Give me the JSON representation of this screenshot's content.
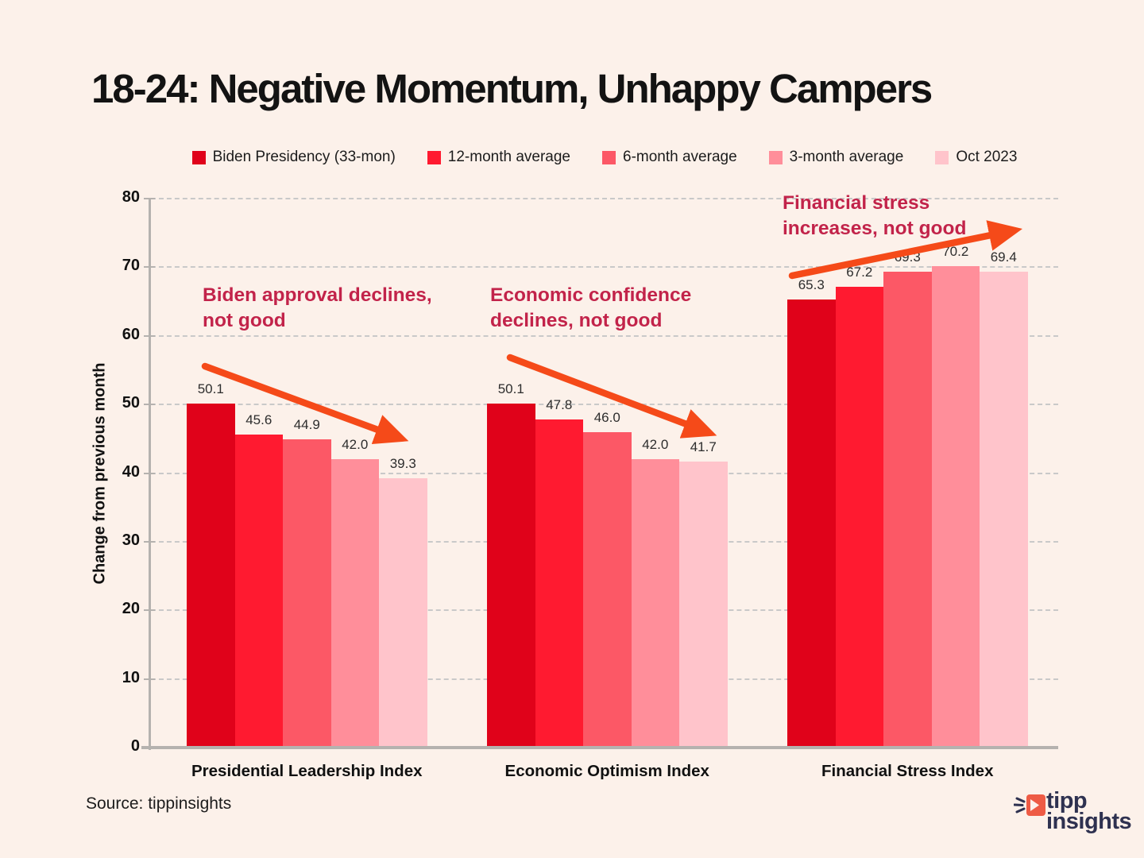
{
  "title": "18-24: Negative Momentum, Unhappy Campers",
  "chart_data": {
    "type": "bar",
    "categories": [
      "Presidential Leadership Index",
      "Economic Optimism Index",
      "Financial Stress Index"
    ],
    "series": [
      {
        "name": "Biden Presidency (33-mon)",
        "color": "#e0021a",
        "values": [
          50.1,
          50.1,
          65.3
        ]
      },
      {
        "name": "12-month average",
        "color": "#ff1a30",
        "values": [
          45.6,
          47.8,
          67.2
        ]
      },
      {
        "name": "6-month average",
        "color": "#fc5866",
        "values": [
          44.9,
          46.0,
          69.3
        ]
      },
      {
        "name": "3-month average",
        "color": "#ff8e9a",
        "values": [
          42.0,
          42.0,
          70.2
        ]
      },
      {
        "name": "Oct 2023",
        "color": "#ffc4cb",
        "values": [
          39.3,
          41.7,
          69.4
        ]
      }
    ],
    "ylabel": "Change from previous month",
    "xlabel": "",
    "ylim": [
      0,
      80
    ],
    "yticks": [
      0,
      10,
      20,
      30,
      40,
      50,
      60,
      70,
      80
    ],
    "grid": "horizontal-dashed",
    "legend_position": "top",
    "value_label_decimals": 1,
    "annotations": [
      {
        "lines": [
          "Biden approval declines,",
          "not good"
        ],
        "trend": "down"
      },
      {
        "lines": [
          "Economic confidence",
          "declines, not good"
        ],
        "trend": "down"
      },
      {
        "lines": [
          "Financial stress",
          "increases, not good"
        ],
        "trend": "up"
      }
    ]
  },
  "source": "Source: tippinsights",
  "logo": {
    "word1": "tipp",
    "word2": "insights",
    "icon": "tipp-arrow-icon"
  },
  "colors": {
    "background": "#fcf1ea",
    "title": "#131313",
    "annotation": "#c2234a",
    "arrow": "#f54a19",
    "grid": "#c9c9c9",
    "axis": "#b5b2af",
    "logo_navy": "#2e3150",
    "logo_orange": "#ee5b45"
  }
}
